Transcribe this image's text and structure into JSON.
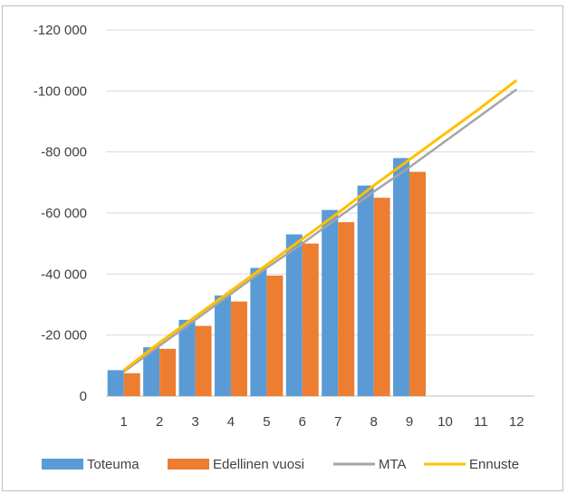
{
  "chart_data": {
    "type": "bar",
    "title": "",
    "xlabel": "",
    "ylabel": "",
    "categories": [
      "1",
      "2",
      "3",
      "4",
      "5",
      "6",
      "7",
      "8",
      "9",
      "10",
      "11",
      "12"
    ],
    "y_tick_labels": [
      "0",
      "-20 000",
      "-40 000",
      "-60 000",
      "-80 000",
      "-100 000",
      "-120 000"
    ],
    "y_tick_values": [
      0,
      20000,
      40000,
      60000,
      80000,
      100000,
      120000
    ],
    "ylim": [
      0,
      120000
    ],
    "y_axis_reversed_labels": true,
    "grid": true,
    "legend_position": "bottom",
    "series": [
      {
        "name": "Toteuma",
        "kind": "bar",
        "color": "#5b9bd5",
        "values": [
          8500,
          16000,
          25000,
          33000,
          42000,
          53000,
          61000,
          69000,
          78000,
          null,
          null,
          null
        ]
      },
      {
        "name": "Edellinen vuosi",
        "kind": "bar",
        "color": "#ed7d31",
        "values": [
          7500,
          15500,
          23000,
          31000,
          39500,
          50000,
          57000,
          65000,
          73500,
          null,
          null,
          null
        ]
      },
      {
        "name": "MTA",
        "kind": "line",
        "color": "#a5a5a5",
        "values": [
          8000,
          16500,
          25000,
          33500,
          42000,
          50000,
          58500,
          67000,
          75000,
          83500,
          92000,
          100500
        ]
      },
      {
        "name": "Ennuste",
        "kind": "line",
        "color": "#ffc000",
        "values": [
          8500,
          17500,
          26000,
          34500,
          43000,
          51500,
          60000,
          69000,
          77500,
          86000,
          94500,
          103500
        ]
      }
    ]
  }
}
